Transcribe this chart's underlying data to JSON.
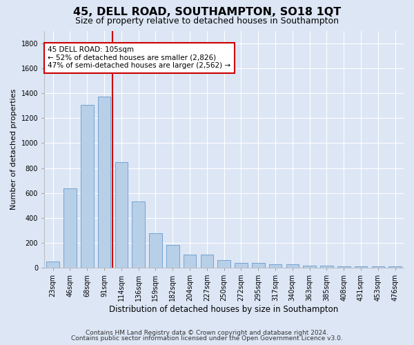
{
  "title": "45, DELL ROAD, SOUTHAMPTON, SO18 1QT",
  "subtitle": "Size of property relative to detached houses in Southampton",
  "xlabel": "Distribution of detached houses by size in Southampton",
  "ylabel": "Number of detached properties",
  "categories": [
    "23sqm",
    "46sqm",
    "68sqm",
    "91sqm",
    "114sqm",
    "136sqm",
    "159sqm",
    "182sqm",
    "204sqm",
    "227sqm",
    "250sqm",
    "272sqm",
    "295sqm",
    "317sqm",
    "340sqm",
    "363sqm",
    "385sqm",
    "408sqm",
    "431sqm",
    "453sqm",
    "476sqm"
  ],
  "values": [
    50,
    635,
    1305,
    1375,
    845,
    530,
    275,
    185,
    103,
    103,
    62,
    37,
    37,
    28,
    28,
    15,
    15,
    10,
    10,
    10,
    10
  ],
  "bar_color": "#b8cfe8",
  "bar_edgecolor": "#6699cc",
  "vline_color": "#cc0000",
  "annotation_box_text": "45 DELL ROAD: 105sqm\n← 52% of detached houses are smaller (2,826)\n47% of semi-detached houses are larger (2,562) →",
  "annotation_box_color": "#cc0000",
  "annotation_box_bg": "#ffffff",
  "ylim": [
    0,
    1900
  ],
  "yticks": [
    0,
    200,
    400,
    600,
    800,
    1000,
    1200,
    1400,
    1600,
    1800
  ],
  "background_color": "#dce6f5",
  "grid_color": "#ffffff",
  "footer_line1": "Contains HM Land Registry data © Crown copyright and database right 2024.",
  "footer_line2": "Contains public sector information licensed under the Open Government Licence v3.0.",
  "title_fontsize": 11.5,
  "subtitle_fontsize": 9,
  "xlabel_fontsize": 8.5,
  "ylabel_fontsize": 8,
  "tick_fontsize": 7,
  "annotation_fontsize": 7.5,
  "footer_fontsize": 6.5
}
